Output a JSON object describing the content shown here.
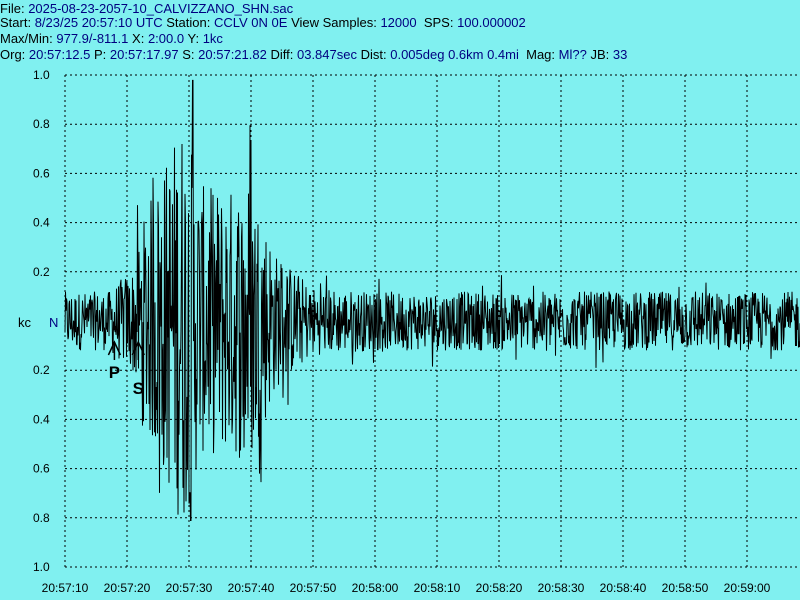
{
  "header": {
    "file_label": "File:",
    "file_value": "2025-08-23-2057-10_CALVIZZANO_SHN.sac",
    "start_label": "Start:",
    "start_value": "8/23/25 20:57:10 UTC",
    "station_label": "Station:",
    "station_value": "CCLV 0N 0E",
    "view_samples_label": "View Samples:",
    "view_samples_value": "12000",
    "sps_label": "SPS:",
    "sps_value": "100.000002",
    "maxmin_label": "Max/Min:",
    "maxmin_value": "977.9/-811.1",
    "x_label": "X:",
    "x_value": "2:00.0",
    "y_label": "Y:",
    "y_value": "1kc",
    "org_label": "Org:",
    "org_value": "20:57:12.5",
    "p_label": "P:",
    "p_value": "20:57:17.97",
    "s_label": "S:",
    "s_value": "20:57:21.82",
    "diff_label": "Diff:",
    "diff_value": "03.847sec",
    "dist_label": "Dist:",
    "dist_value": "0.005deg 0.6km 0.4mi",
    "mag_label": "Mag:",
    "mag_value": "Ml??",
    "jb_label": "JB:",
    "jb_value": "33"
  },
  "colors": {
    "background": "#80f0f0",
    "trace": "#000000",
    "grid": "#000000",
    "value_text": "#000080"
  },
  "chart_data": {
    "type": "line",
    "y_unit_label": "kc",
    "channel_label": "N",
    "y_ticks": [
      "1.0",
      "0.8",
      "0.6",
      "0.4",
      "0.2",
      "0.2",
      "0.4",
      "0.6",
      "0.8",
      "1.0"
    ],
    "y_tick_values": [
      1.0,
      0.8,
      0.6,
      0.4,
      0.2,
      -0.2,
      -0.4,
      -0.6,
      -0.8,
      -1.0
    ],
    "ylim": [
      -1.0,
      1.0
    ],
    "x_ticks": [
      "20:57:10",
      "20:57:20",
      "20:57:30",
      "20:57:40",
      "20:57:50",
      "20:58:00",
      "20:58:10",
      "20:58:20",
      "20:58:30",
      "20:58:40",
      "20:58:50",
      "20:59:00"
    ],
    "x_range_seconds": [
      0,
      120
    ],
    "grid": true,
    "phase_markers": [
      {
        "label": "P",
        "time": "20:57:17.97"
      },
      {
        "label": "S",
        "time": "20:57:21.82"
      }
    ],
    "envelope": {
      "times": [
        "20:57:10",
        "20:57:17",
        "20:57:21",
        "20:57:23",
        "20:57:26",
        "20:57:29",
        "20:57:32",
        "20:57:37",
        "20:57:40",
        "20:57:44",
        "20:57:50",
        "20:58:00",
        "20:58:30",
        "20:59:10"
      ],
      "amplitudes": [
        0.12,
        0.12,
        0.22,
        0.45,
        0.65,
        0.85,
        0.55,
        0.55,
        0.6,
        0.28,
        0.14,
        0.12,
        0.12,
        0.12
      ]
    },
    "max": 977.9,
    "min": -811.1
  }
}
